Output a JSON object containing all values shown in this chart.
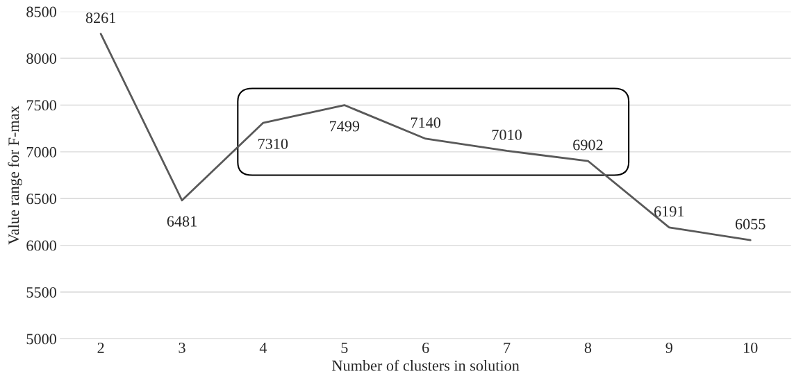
{
  "chart_data": {
    "type": "line",
    "xlabel": "Number of clusters in solution",
    "ylabel": "Value range for F-max",
    "categories": [
      "2",
      "3",
      "4",
      "5",
      "6",
      "7",
      "8",
      "9",
      "10"
    ],
    "series": [
      {
        "color": "#595959",
        "values": [
          8261,
          6481,
          7310,
          7499,
          7140,
          7010,
          6902,
          6191,
          6055
        ]
      }
    ],
    "ylim": [
      5000,
      8500
    ],
    "yticks": [
      5000,
      5500,
      6000,
      6500,
      7000,
      7500,
      8000,
      8500
    ],
    "grid": "y",
    "marker": "none",
    "line_style": "solid",
    "data_labels": true,
    "legend": false
  }
}
